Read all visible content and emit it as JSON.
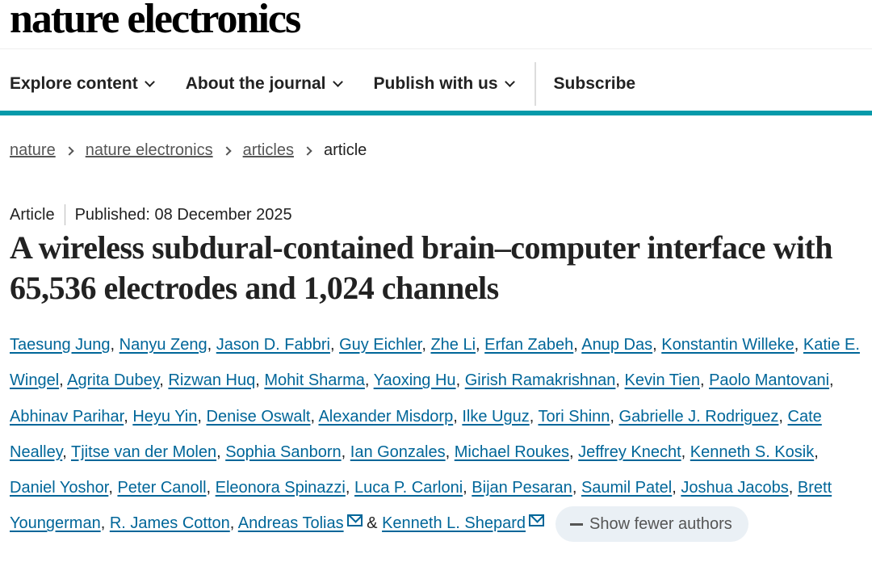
{
  "logo": "nature electronics",
  "nav": {
    "items": [
      {
        "label": "Explore content",
        "dropdown": true
      },
      {
        "label": "About the journal",
        "dropdown": true
      },
      {
        "label": "Publish with us",
        "dropdown": true
      }
    ],
    "subscribe": "Subscribe"
  },
  "breadcrumb": [
    "nature",
    "nature electronics",
    "articles",
    "article"
  ],
  "article": {
    "type": "Article",
    "published": "Published: 08 December 2025",
    "title": "A wireless subdural-contained brain–computer interface with 65,536 electrodes and 1,024 channels"
  },
  "authors": [
    "Taesung Jung",
    "Nanyu Zeng",
    "Jason D. Fabbri",
    "Guy Eichler",
    "Zhe Li",
    "Erfan Zabeh",
    "Anup Das",
    "Konstantin Willeke",
    "Katie E. Wingel",
    "Agrita Dubey",
    "Rizwan Huq",
    "Mohit Sharma",
    "Yaoxing Hu",
    "Girish Ramakrishnan",
    "Kevin Tien",
    "Paolo Mantovani",
    "Abhinav Parihar",
    "Heyu Yin",
    "Denise Oswalt",
    "Alexander Misdorp",
    "Ilke Uguz",
    "Tori Shinn",
    "Gabrielle J. Rodriguez",
    "Cate Nealley",
    "Tjitse van der Molen",
    "Sophia Sanborn",
    "Ian Gonzales",
    "Michael Roukes",
    "Jeffrey Knecht",
    "Kenneth S. Kosik",
    "Daniel Yoshor",
    "Peter Canoll",
    "Eleonora Spinazzi",
    "Luca P. Carloni",
    "Bijan Pesaran",
    "Saumil Patel",
    "Joshua Jacobs",
    "Brett Youngerman",
    "R. James Cotton",
    "Andreas Tolias",
    "Kenneth L. Shepard"
  ],
  "corresponding_authors": [
    "Andreas Tolias",
    "Kenneth L. Shepard"
  ],
  "ampersand": "&",
  "show_fewer": "Show fewer authors",
  "colors": {
    "accent": "#069aaa",
    "link": "#006699"
  }
}
